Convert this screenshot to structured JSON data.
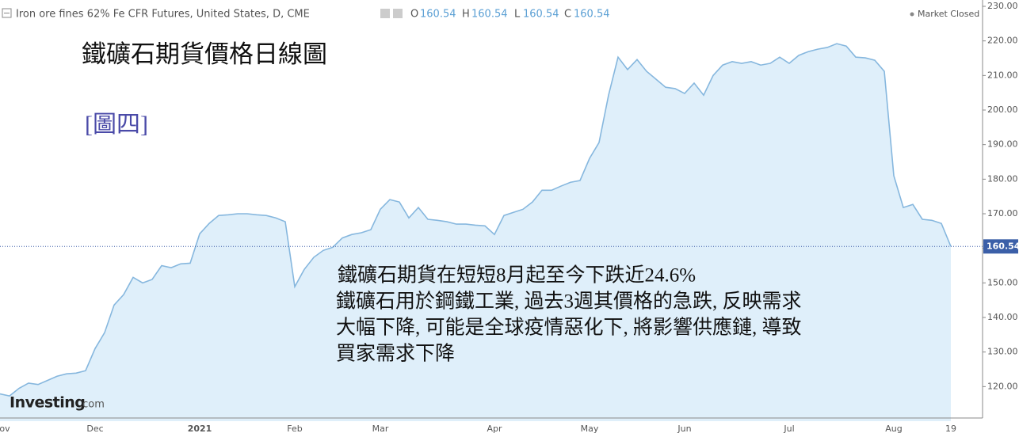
{
  "chart_data": {
    "type": "line",
    "header": {
      "title": "Iron ore fines 62% Fe CFR Futures, United States, D, CME",
      "open_label": "O",
      "open": 160.54,
      "high_label": "H",
      "high": 160.54,
      "low_label": "L",
      "low": 160.54,
      "close_label": "C",
      "close": 160.54,
      "status": "Market Closed"
    },
    "title": "鐵礦石期貨價格日線圖",
    "subtitle": "[圖四]",
    "annotation": [
      "鐵礦石期貨在短短8月起至今下跌近24.6%",
      "鐵礦石用於鋼鐵工業, 過去3週其價格的急跌, 反映需求",
      "大幅下降, 可能是全球疫情惡化下, 將影響供應鏈, 導致",
      "買家需求下降"
    ],
    "watermark": {
      "brand": "Investing",
      "suffix": ".com"
    },
    "categories": [
      "ov",
      null,
      null,
      null,
      null,
      null,
      null,
      null,
      null,
      null,
      "Dec",
      null,
      null,
      null,
      null,
      null,
      null,
      null,
      null,
      null,
      null,
      "2021",
      null,
      null,
      null,
      null,
      null,
      null,
      null,
      null,
      null,
      "Feb",
      null,
      null,
      null,
      null,
      null,
      null,
      null,
      null,
      "Mar",
      null,
      null,
      null,
      null,
      null,
      null,
      null,
      null,
      null,
      null,
      null,
      "Apr",
      null,
      null,
      null,
      null,
      null,
      null,
      null,
      null,
      null,
      "May",
      null,
      null,
      null,
      null,
      null,
      null,
      null,
      null,
      null,
      "Jun",
      null,
      null,
      null,
      null,
      null,
      null,
      null,
      null,
      null,
      null,
      "Jul",
      null,
      null,
      null,
      null,
      null,
      null,
      null,
      null,
      null,
      null,
      "Aug",
      null,
      null,
      null,
      null,
      null,
      "19"
    ],
    "values": [
      117.9,
      117.3,
      119.5,
      121,
      120.6,
      121.8,
      123,
      123.7,
      123.9,
      124.6,
      131,
      135.6,
      143.6,
      146.6,
      151.6,
      150,
      151,
      155,
      154.4,
      155.5,
      155.7,
      164.2,
      167.2,
      169.5,
      169.7,
      170,
      170,
      169.7,
      169.5,
      168.8,
      167.7,
      148.9,
      153.9,
      157.4,
      159.4,
      160.3,
      163,
      164,
      164.5,
      165.4,
      171.3,
      174.1,
      173.4,
      168.8,
      171.8,
      168.4,
      168.1,
      167.7,
      167,
      167,
      166.7,
      166.5,
      164,
      169.5,
      170.4,
      171.3,
      173.4,
      176.8,
      176.8,
      178,
      179.1,
      179.6,
      186,
      190.6,
      204.3,
      215.3,
      211.7,
      214.6,
      211.2,
      208.9,
      206.6,
      206.2,
      204.8,
      207.8,
      204.3,
      210,
      213,
      214,
      213.5,
      214,
      213,
      213.5,
      215.3,
      213.5,
      215.8,
      216.9,
      217.6,
      218.1,
      219.2,
      218.5,
      215.3,
      215.1,
      214.4,
      211.2,
      181,
      171.8,
      172.7,
      168.4,
      168.1,
      167.2,
      160.54
    ],
    "color": "#86b7de",
    "fill": "#dfeffa",
    "ylim": [
      110,
      230
    ],
    "yticks": [
      {
        "value": 120,
        "label": "120.00"
      },
      {
        "value": 130,
        "label": "130.00"
      },
      {
        "value": 140,
        "label": "140.00"
      },
      {
        "value": 150,
        "label": "150.00"
      },
      {
        "value": 160,
        "label": "160.00"
      },
      {
        "value": 170,
        "label": "170.00"
      },
      {
        "value": 180,
        "label": "180.00"
      },
      {
        "value": 190,
        "label": "190.00"
      },
      {
        "value": 200,
        "label": "200.00"
      },
      {
        "value": 210,
        "label": "210.00"
      },
      {
        "value": 220,
        "label": "220.00"
      },
      {
        "value": 230,
        "label": "230.00"
      }
    ]
  }
}
